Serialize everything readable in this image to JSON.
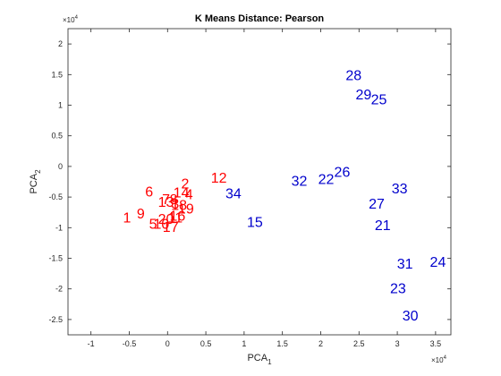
{
  "chart_data": {
    "type": "scatter",
    "title": "K Means Distance: Pearson",
    "xlabel": {
      "main": "PCA",
      "sub": "1"
    },
    "ylabel": {
      "main": "PCA",
      "sub": "2"
    },
    "x_multiplier": {
      "base": "×10",
      "exp": "4"
    },
    "y_multiplier": {
      "base": "×10",
      "exp": "4"
    },
    "xlim": [
      -1.3,
      3.7
    ],
    "ylim": [
      -2.75,
      2.25
    ],
    "xticks": [
      -1,
      -0.5,
      0,
      0.5,
      1,
      1.5,
      2,
      2.5,
      3,
      3.5
    ],
    "xtick_labels": [
      "-1",
      "-0.5",
      "0",
      "0.5",
      "1",
      "1.5",
      "2",
      "2.5",
      "3",
      "3.5"
    ],
    "yticks": [
      -2.5,
      -2,
      -1.5,
      -1,
      -0.5,
      0,
      0.5,
      1,
      1.5,
      2
    ],
    "ytick_labels": [
      "-2.5",
      "-2",
      "-1.5",
      "-1",
      "-0.5",
      "0",
      "0.5",
      "1",
      "1.5",
      "2"
    ],
    "grid": false,
    "colors": {
      "cluster_red": "#ff0000",
      "cluster_blue": "#0000cc",
      "axes": "#262626"
    },
    "points": [
      {
        "label": "1",
        "x": -0.53,
        "y": -0.83,
        "cluster": "red"
      },
      {
        "label": "9",
        "x": -0.35,
        "y": -0.76,
        "cluster": "red"
      },
      {
        "label": "6",
        "x": -0.24,
        "y": -0.4,
        "cluster": "red"
      },
      {
        "label": "5",
        "x": -0.19,
        "y": -0.93,
        "cluster": "red"
      },
      {
        "label": "10",
        "x": -0.08,
        "y": -0.93,
        "cluster": "red"
      },
      {
        "label": "13",
        "x": -0.02,
        "y": -0.57,
        "cluster": "red"
      },
      {
        "label": "7",
        "x": -0.02,
        "y": -0.53,
        "cluster": "red"
      },
      {
        "label": "20",
        "x": -0.02,
        "y": -0.85,
        "cluster": "red"
      },
      {
        "label": "17",
        "x": 0.04,
        "y": -0.98,
        "cluster": "red"
      },
      {
        "label": "8",
        "x": 0.08,
        "y": -0.53,
        "cluster": "red"
      },
      {
        "label": "3",
        "x": 0.1,
        "y": -0.6,
        "cluster": "red"
      },
      {
        "label": "11",
        "x": 0.1,
        "y": -0.83,
        "cluster": "red"
      },
      {
        "label": "16",
        "x": 0.13,
        "y": -0.8,
        "cluster": "red"
      },
      {
        "label": "18",
        "x": 0.15,
        "y": -0.62,
        "cluster": "red"
      },
      {
        "label": "14",
        "x": 0.18,
        "y": -0.42,
        "cluster": "red"
      },
      {
        "label": "2",
        "x": 0.23,
        "y": -0.27,
        "cluster": "red"
      },
      {
        "label": "4",
        "x": 0.28,
        "y": -0.45,
        "cluster": "red"
      },
      {
        "label": "19",
        "x": 0.24,
        "y": -0.68,
        "cluster": "red"
      },
      {
        "label": "12",
        "x": 0.67,
        "y": -0.18,
        "cluster": "red"
      },
      {
        "label": "34",
        "x": 0.86,
        "y": -0.43,
        "cluster": "blue"
      },
      {
        "label": "15",
        "x": 1.14,
        "y": -0.9,
        "cluster": "blue"
      },
      {
        "label": "32",
        "x": 1.72,
        "y": -0.23,
        "cluster": "blue"
      },
      {
        "label": "22",
        "x": 2.07,
        "y": -0.2,
        "cluster": "blue"
      },
      {
        "label": "26",
        "x": 2.28,
        "y": -0.08,
        "cluster": "blue"
      },
      {
        "label": "28",
        "x": 2.43,
        "y": 1.5,
        "cluster": "blue"
      },
      {
        "label": "29",
        "x": 2.56,
        "y": 1.18,
        "cluster": "blue"
      },
      {
        "label": "25",
        "x": 2.76,
        "y": 1.1,
        "cluster": "blue"
      },
      {
        "label": "27",
        "x": 2.73,
        "y": -0.6,
        "cluster": "blue"
      },
      {
        "label": "21",
        "x": 2.81,
        "y": -0.95,
        "cluster": "blue"
      },
      {
        "label": "33",
        "x": 3.03,
        "y": -0.35,
        "cluster": "blue"
      },
      {
        "label": "31",
        "x": 3.1,
        "y": -1.58,
        "cluster": "blue"
      },
      {
        "label": "24",
        "x": 3.53,
        "y": -1.55,
        "cluster": "blue"
      },
      {
        "label": "23",
        "x": 3.01,
        "y": -1.98,
        "cluster": "blue"
      },
      {
        "label": "30",
        "x": 3.17,
        "y": -2.43,
        "cluster": "blue"
      }
    ]
  }
}
